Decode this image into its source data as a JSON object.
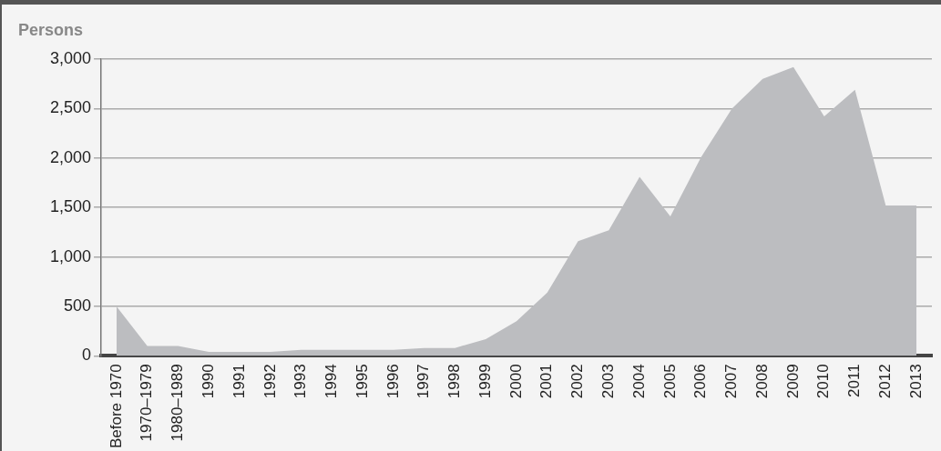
{
  "chart_data": {
    "type": "area",
    "ylabel": "Persons",
    "categories": [
      "Before 1970",
      "1970–1979",
      "1980–1989",
      "1990",
      "1991",
      "1992",
      "1993",
      "1994",
      "1995",
      "1996",
      "1997",
      "1998",
      "1999",
      "2000",
      "2001",
      "2002",
      "2003",
      "2004",
      "2005",
      "2006",
      "2007",
      "2008",
      "2009",
      "2010",
      "2011",
      "2012",
      "2013"
    ],
    "series": [
      {
        "color": "#bcbdc0",
        "values": [
          500,
          100,
          100,
          40,
          40,
          40,
          60,
          60,
          60,
          60,
          80,
          80,
          170,
          350,
          640,
          1160,
          1270,
          1810,
          1410,
          2010,
          2500,
          2800,
          2920,
          2420,
          2690,
          1520,
          1520
        ]
      }
    ],
    "ylim": [
      0,
      3000
    ],
    "yticks": [
      {
        "value": 0,
        "label": "0"
      },
      {
        "value": 500,
        "label": "500"
      },
      {
        "value": 1000,
        "label": "1,000"
      },
      {
        "value": 1500,
        "label": "1,500"
      },
      {
        "value": 2000,
        "label": "2,000"
      },
      {
        "value": 2500,
        "label": "2,500"
      },
      {
        "value": 3000,
        "label": "3,000"
      }
    ],
    "grid": "y",
    "legend": false
  }
}
